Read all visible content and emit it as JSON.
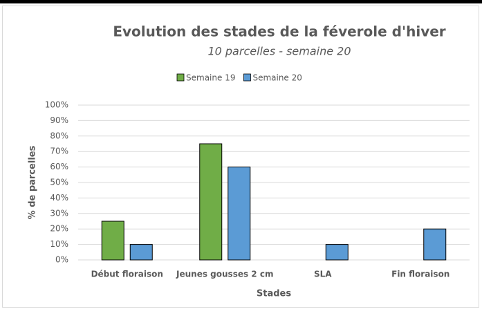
{
  "chart_data": {
    "type": "bar",
    "title": "Evolution des stades de la féverole d'hiver",
    "subtitle": "10 parcelles - semaine 20",
    "x_label": "Stades",
    "y_label": "% de parcelles",
    "categories": [
      "Début floraison",
      "Jeunes gousses 2 cm",
      "SLA",
      "Fin floraison"
    ],
    "series": [
      {
        "name": "Semaine 19",
        "color": "#70ad47",
        "values": [
          25,
          75,
          0,
          0
        ]
      },
      {
        "name": "Semaine 20",
        "color": "#5b9bd5",
        "values": [
          10,
          60,
          10,
          20
        ]
      }
    ],
    "ylim": [
      0,
      100
    ],
    "yticks": [
      {
        "value": 0,
        "label": "0%"
      },
      {
        "value": 10,
        "label": "10%"
      },
      {
        "value": 20,
        "label": "20%"
      },
      {
        "value": 30,
        "label": "30%"
      },
      {
        "value": 40,
        "label": "40%"
      },
      {
        "value": 50,
        "label": "50%"
      },
      {
        "value": 60,
        "label": "60%"
      },
      {
        "value": 70,
        "label": "70%"
      },
      {
        "value": 80,
        "label": "80%"
      },
      {
        "value": 90,
        "label": "90%"
      },
      {
        "value": 100,
        "label": "100%"
      }
    ],
    "grid": true,
    "legend": "top"
  }
}
